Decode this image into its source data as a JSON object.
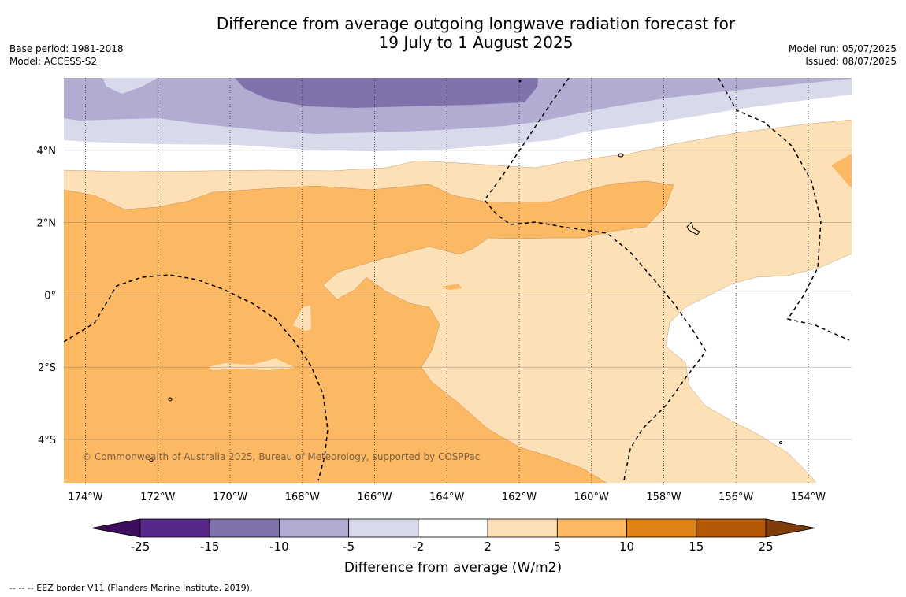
{
  "title": {
    "line1": "Difference from average outgoing longwave radiation forecast for",
    "line2": "19 July to 1 August 2025"
  },
  "meta_left": {
    "base_period": "Base period: 1981-2018",
    "model": "Model: ACCESS-S2"
  },
  "meta_right": {
    "model_run": "Model run: 05/07/2025",
    "issued": "Issued: 08/07/2025"
  },
  "map": {
    "lon_range": [
      -174.6,
      -152.8
    ],
    "lat_range": [
      -5.2,
      6.0
    ],
    "lon_ticks": [
      {
        "value": -174,
        "label": "174°W"
      },
      {
        "value": -172,
        "label": "172°W"
      },
      {
        "value": -170,
        "label": "170°W"
      },
      {
        "value": -168,
        "label": "168°W"
      },
      {
        "value": -166,
        "label": "166°W"
      },
      {
        "value": -164,
        "label": "164°W"
      },
      {
        "value": -162,
        "label": "162°W"
      },
      {
        "value": -160,
        "label": "160°W"
      },
      {
        "value": -158,
        "label": "158°W"
      },
      {
        "value": -156,
        "label": "156°W"
      },
      {
        "value": -154,
        "label": "154°W"
      }
    ],
    "lat_ticks": [
      {
        "value": 4,
        "label": "4°N"
      },
      {
        "value": 2,
        "label": "2°N"
      },
      {
        "value": 0,
        "label": "0°"
      },
      {
        "value": -2,
        "label": "2°S"
      },
      {
        "value": -4,
        "label": "4°S"
      }
    ],
    "copyright": "© Commonwealth of Australia 2025, Bureau of Meteorology, supported by COSPPac"
  },
  "colorbar": {
    "label": "Difference from average (W/m2)",
    "ticks": [
      "-25",
      "-15",
      "-10",
      "-5",
      "-2",
      "2",
      "5",
      "10",
      "15",
      "25"
    ],
    "colors": {
      "below_min": "#3d0e5e",
      "bins": [
        "#542788",
        "#8073ac",
        "#b2abd2",
        "#d8daeb",
        "#ffffff",
        "#fee0b6",
        "#fdb863",
        "#e08214",
        "#b35806"
      ],
      "above_max": "#7f3b08"
    }
  },
  "footer": "--  --  -- EEZ border V11 (Flanders Marine Institute, 2019)."
}
